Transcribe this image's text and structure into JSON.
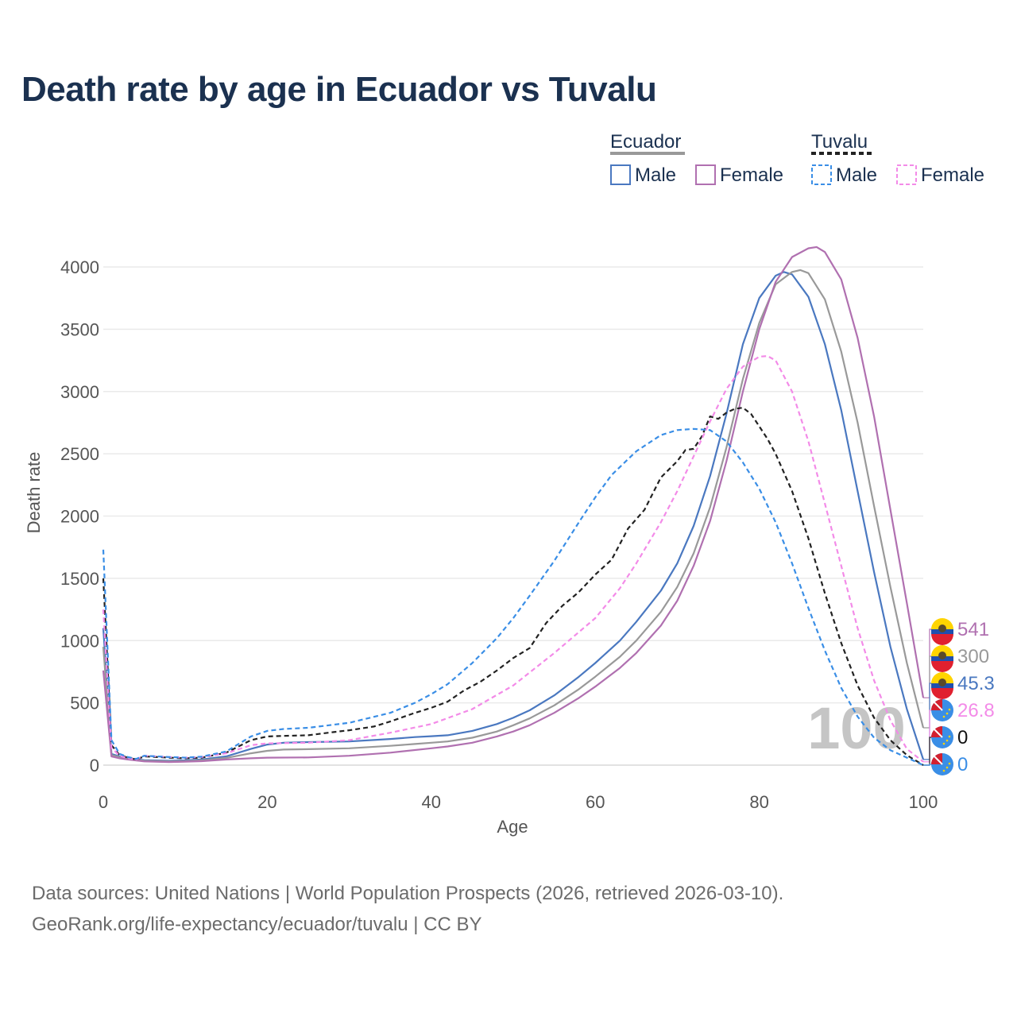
{
  "title": "Death rate by age in Ecuador vs Tuvalu",
  "legend": {
    "groups": [
      {
        "name": "Ecuador",
        "line": "solid",
        "items": [
          {
            "label": "Male",
            "color": "#4a78c0"
          },
          {
            "label": "Female",
            "color": "#b070b0"
          }
        ]
      },
      {
        "name": "Tuvalu",
        "line": "dashed",
        "items": [
          {
            "label": "Male",
            "color": "#3a8ee6"
          },
          {
            "label": "Female",
            "color": "#f38be8"
          }
        ]
      }
    ]
  },
  "watermark": "100",
  "source": {
    "line1": "Data sources: United Nations | World Population Prospects (2026, retrieved 2026-03-10).",
    "line2": "GeoRank.org/life-expectancy/ecuador/tuvalu | CC BY"
  },
  "chart_data": {
    "type": "line",
    "xlabel": "Age",
    "ylabel": "Death rate",
    "xlim": [
      0,
      100
    ],
    "ylim": [
      0,
      4200
    ],
    "xticks": [
      0,
      20,
      40,
      60,
      80,
      100
    ],
    "yticks": [
      0,
      500,
      1000,
      1500,
      2000,
      2500,
      3000,
      3500,
      4000
    ],
    "grid": true,
    "series": [
      {
        "name": "Ecuador Male",
        "country": "Ecuador",
        "sex": "Male",
        "color": "#4a78c0",
        "dash": false,
        "end_label": "45.3",
        "points": [
          [
            0,
            1100
          ],
          [
            1,
            90
          ],
          [
            2,
            70
          ],
          [
            3,
            55
          ],
          [
            5,
            40
          ],
          [
            8,
            35
          ],
          [
            10,
            38
          ],
          [
            12,
            45
          ],
          [
            15,
            70
          ],
          [
            18,
            130
          ],
          [
            20,
            165
          ],
          [
            22,
            180
          ],
          [
            25,
            185
          ],
          [
            30,
            190
          ],
          [
            35,
            210
          ],
          [
            38,
            225
          ],
          [
            40,
            232
          ],
          [
            42,
            240
          ],
          [
            45,
            275
          ],
          [
            48,
            330
          ],
          [
            50,
            380
          ],
          [
            52,
            440
          ],
          [
            55,
            560
          ],
          [
            58,
            710
          ],
          [
            60,
            820
          ],
          [
            63,
            1000
          ],
          [
            65,
            1150
          ],
          [
            68,
            1400
          ],
          [
            70,
            1620
          ],
          [
            72,
            1920
          ],
          [
            74,
            2320
          ],
          [
            76,
            2820
          ],
          [
            78,
            3380
          ],
          [
            80,
            3750
          ],
          [
            82,
            3930
          ],
          [
            83,
            3960
          ],
          [
            84,
            3940
          ],
          [
            86,
            3760
          ],
          [
            88,
            3380
          ],
          [
            90,
            2850
          ],
          [
            92,
            2200
          ],
          [
            94,
            1550
          ],
          [
            96,
            950
          ],
          [
            98,
            450
          ],
          [
            100,
            45.3
          ]
        ]
      },
      {
        "name": "Ecuador Total",
        "country": "Ecuador",
        "sex": "Total",
        "color": "#999999",
        "dash": false,
        "end_label": "300",
        "points": [
          [
            0,
            950
          ],
          [
            1,
            80
          ],
          [
            2,
            65
          ],
          [
            3,
            50
          ],
          [
            5,
            35
          ],
          [
            8,
            30
          ],
          [
            10,
            32
          ],
          [
            12,
            38
          ],
          [
            15,
            58
          ],
          [
            18,
            95
          ],
          [
            20,
            115
          ],
          [
            22,
            125
          ],
          [
            25,
            128
          ],
          [
            30,
            135
          ],
          [
            35,
            155
          ],
          [
            38,
            170
          ],
          [
            40,
            180
          ],
          [
            42,
            190
          ],
          [
            45,
            220
          ],
          [
            48,
            270
          ],
          [
            50,
            320
          ],
          [
            52,
            375
          ],
          [
            55,
            480
          ],
          [
            58,
            610
          ],
          [
            60,
            710
          ],
          [
            63,
            870
          ],
          [
            65,
            1000
          ],
          [
            68,
            1230
          ],
          [
            70,
            1430
          ],
          [
            72,
            1700
          ],
          [
            74,
            2070
          ],
          [
            76,
            2550
          ],
          [
            78,
            3100
          ],
          [
            80,
            3550
          ],
          [
            82,
            3860
          ],
          [
            84,
            3960
          ],
          [
            85,
            3975
          ],
          [
            86,
            3950
          ],
          [
            88,
            3740
          ],
          [
            90,
            3320
          ],
          [
            92,
            2750
          ],
          [
            94,
            2080
          ],
          [
            96,
            1430
          ],
          [
            98,
            820
          ],
          [
            100,
            300
          ]
        ]
      },
      {
        "name": "Ecuador Female",
        "country": "Ecuador",
        "sex": "Female",
        "color": "#b070b0",
        "dash": false,
        "end_label": "541",
        "points": [
          [
            0,
            760
          ],
          [
            1,
            70
          ],
          [
            2,
            55
          ],
          [
            3,
            45
          ],
          [
            5,
            30
          ],
          [
            8,
            25
          ],
          [
            10,
            28
          ],
          [
            12,
            32
          ],
          [
            15,
            45
          ],
          [
            18,
            55
          ],
          [
            20,
            60
          ],
          [
            25,
            62
          ],
          [
            30,
            75
          ],
          [
            35,
            100
          ],
          [
            40,
            135
          ],
          [
            42,
            150
          ],
          [
            45,
            180
          ],
          [
            48,
            230
          ],
          [
            50,
            270
          ],
          [
            52,
            320
          ],
          [
            55,
            420
          ],
          [
            58,
            540
          ],
          [
            60,
            630
          ],
          [
            63,
            780
          ],
          [
            65,
            900
          ],
          [
            68,
            1120
          ],
          [
            70,
            1320
          ],
          [
            72,
            1600
          ],
          [
            74,
            1960
          ],
          [
            76,
            2440
          ],
          [
            78,
            3000
          ],
          [
            80,
            3500
          ],
          [
            82,
            3880
          ],
          [
            84,
            4080
          ],
          [
            86,
            4150
          ],
          [
            87,
            4160
          ],
          [
            88,
            4120
          ],
          [
            90,
            3900
          ],
          [
            92,
            3430
          ],
          [
            94,
            2800
          ],
          [
            96,
            2050
          ],
          [
            98,
            1300
          ],
          [
            100,
            541
          ]
        ]
      },
      {
        "name": "Tuvalu Total",
        "country": "Tuvalu",
        "sex": "Total",
        "color": "#222222",
        "dash": true,
        "end_label": "0",
        "points": [
          [
            0,
            1500
          ],
          [
            1,
            160
          ],
          [
            2,
            80
          ],
          [
            3,
            60
          ],
          [
            4,
            45
          ],
          [
            5,
            70
          ],
          [
            8,
            60
          ],
          [
            10,
            55
          ],
          [
            12,
            60
          ],
          [
            15,
            100
          ],
          [
            18,
            200
          ],
          [
            20,
            230
          ],
          [
            22,
            235
          ],
          [
            25,
            240
          ],
          [
            28,
            265
          ],
          [
            30,
            280
          ],
          [
            33,
            310
          ],
          [
            35,
            350
          ],
          [
            38,
            420
          ],
          [
            40,
            460
          ],
          [
            42,
            510
          ],
          [
            44,
            600
          ],
          [
            46,
            670
          ],
          [
            48,
            760
          ],
          [
            50,
            860
          ],
          [
            52,
            940
          ],
          [
            54,
            1140
          ],
          [
            56,
            1280
          ],
          [
            58,
            1390
          ],
          [
            60,
            1530
          ],
          [
            62,
            1650
          ],
          [
            64,
            1900
          ],
          [
            66,
            2050
          ],
          [
            68,
            2310
          ],
          [
            70,
            2440
          ],
          [
            71,
            2530
          ],
          [
            72,
            2540
          ],
          [
            73,
            2640
          ],
          [
            74,
            2800
          ],
          [
            75,
            2780
          ],
          [
            76,
            2830
          ],
          [
            77,
            2860
          ],
          [
            78,
            2870
          ],
          [
            79,
            2820
          ],
          [
            80,
            2720
          ],
          [
            81,
            2620
          ],
          [
            82,
            2500
          ],
          [
            84,
            2200
          ],
          [
            86,
            1820
          ],
          [
            88,
            1380
          ],
          [
            90,
            980
          ],
          [
            92,
            640
          ],
          [
            94,
            380
          ],
          [
            96,
            200
          ],
          [
            98,
            80
          ],
          [
            100,
            0
          ]
        ]
      },
      {
        "name": "Tuvalu Female",
        "country": "Tuvalu",
        "sex": "Female",
        "color": "#f38be8",
        "dash": true,
        "end_label": "26.8",
        "points": [
          [
            0,
            1250
          ],
          [
            1,
            140
          ],
          [
            2,
            75
          ],
          [
            3,
            55
          ],
          [
            4,
            45
          ],
          [
            5,
            75
          ],
          [
            8,
            65
          ],
          [
            10,
            60
          ],
          [
            12,
            65
          ],
          [
            15,
            95
          ],
          [
            18,
            160
          ],
          [
            20,
            175
          ],
          [
            25,
            180
          ],
          [
            30,
            200
          ],
          [
            35,
            260
          ],
          [
            40,
            330
          ],
          [
            45,
            450
          ],
          [
            50,
            640
          ],
          [
            55,
            900
          ],
          [
            60,
            1180
          ],
          [
            63,
            1420
          ],
          [
            65,
            1620
          ],
          [
            68,
            1950
          ],
          [
            70,
            2200
          ],
          [
            72,
            2480
          ],
          [
            74,
            2760
          ],
          [
            76,
            3020
          ],
          [
            78,
            3200
          ],
          [
            80,
            3280
          ],
          [
            81,
            3285
          ],
          [
            82,
            3250
          ],
          [
            84,
            3000
          ],
          [
            86,
            2600
          ],
          [
            88,
            2100
          ],
          [
            90,
            1600
          ],
          [
            92,
            1100
          ],
          [
            94,
            680
          ],
          [
            96,
            360
          ],
          [
            98,
            130
          ],
          [
            100,
            26.8
          ]
        ]
      },
      {
        "name": "Tuvalu Male",
        "country": "Tuvalu",
        "sex": "Male",
        "color": "#3a8ee6",
        "dash": true,
        "end_label": "0",
        "points": [
          [
            0,
            1730
          ],
          [
            1,
            200
          ],
          [
            2,
            90
          ],
          [
            3,
            65
          ],
          [
            4,
            50
          ],
          [
            5,
            75
          ],
          [
            8,
            65
          ],
          [
            10,
            60
          ],
          [
            12,
            68
          ],
          [
            15,
            110
          ],
          [
            18,
            230
          ],
          [
            20,
            275
          ],
          [
            22,
            290
          ],
          [
            25,
            300
          ],
          [
            30,
            340
          ],
          [
            35,
            420
          ],
          [
            38,
            500
          ],
          [
            40,
            570
          ],
          [
            42,
            650
          ],
          [
            45,
            820
          ],
          [
            48,
            1020
          ],
          [
            50,
            1180
          ],
          [
            52,
            1360
          ],
          [
            55,
            1640
          ],
          [
            58,
            1950
          ],
          [
            60,
            2150
          ],
          [
            62,
            2330
          ],
          [
            65,
            2520
          ],
          [
            68,
            2650
          ],
          [
            70,
            2690
          ],
          [
            72,
            2700
          ],
          [
            74,
            2690
          ],
          [
            76,
            2600
          ],
          [
            78,
            2430
          ],
          [
            80,
            2220
          ],
          [
            82,
            1950
          ],
          [
            84,
            1620
          ],
          [
            86,
            1260
          ],
          [
            88,
            920
          ],
          [
            90,
            620
          ],
          [
            92,
            390
          ],
          [
            94,
            220
          ],
          [
            96,
            120
          ],
          [
            98,
            60
          ],
          [
            100,
            0
          ]
        ]
      }
    ]
  }
}
